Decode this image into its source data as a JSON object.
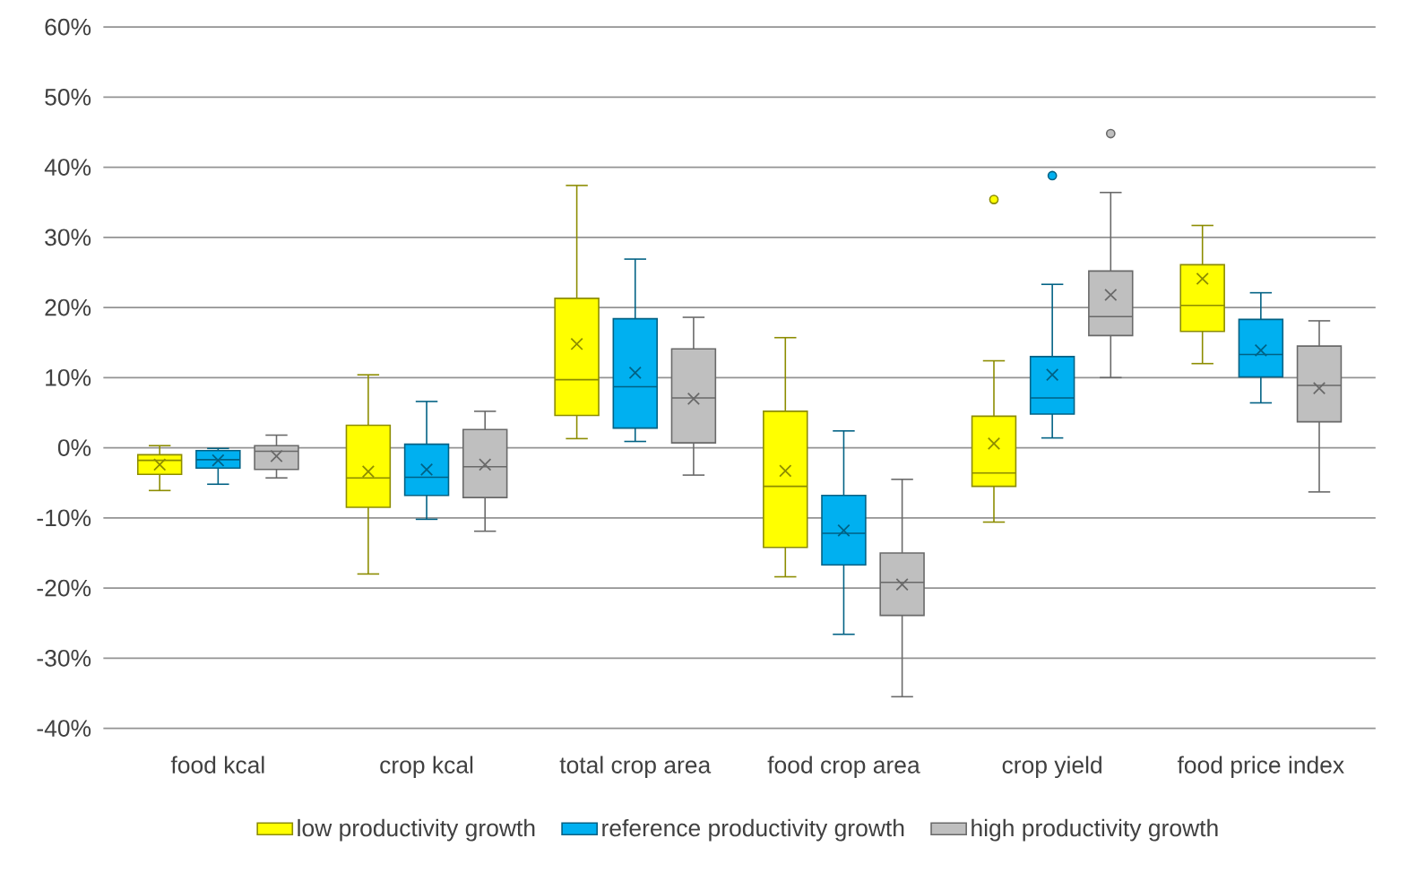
{
  "chart_data": {
    "type": "box",
    "categories": [
      "food kcal",
      "crop kcal",
      "total crop area",
      "food crop area",
      "crop yield",
      "food price index"
    ],
    "ylim": [
      -40,
      60
    ],
    "yticks": [
      {
        "value": -40,
        "label": "-40%"
      },
      {
        "value": -30,
        "label": "-30%"
      },
      {
        "value": -20,
        "label": "-20%"
      },
      {
        "value": -10,
        "label": "-10%"
      },
      {
        "value": 0,
        "label": "0%"
      },
      {
        "value": 10,
        "label": "10%"
      },
      {
        "value": 20,
        "label": "20%"
      },
      {
        "value": 30,
        "label": "30%"
      },
      {
        "value": 40,
        "label": "40%"
      },
      {
        "value": 50,
        "label": "50%"
      },
      {
        "value": 60,
        "label": "60%"
      }
    ],
    "grid": "y",
    "legend": "bottom",
    "series": [
      {
        "name": "low productivity growth",
        "color": "#ffff00",
        "boxes": [
          {
            "low": -6.1,
            "q1": -3.8,
            "median": -1.8,
            "q3": -1.0,
            "high": 0.3,
            "mean": -2.4
          },
          {
            "low": -18.0,
            "q1": -8.5,
            "median": -4.3,
            "q3": 3.2,
            "high": 10.4,
            "mean": -3.4
          },
          {
            "low": 1.3,
            "q1": 4.6,
            "median": 9.7,
            "q3": 21.3,
            "high": 37.4,
            "mean": 14.8
          },
          {
            "low": -18.4,
            "q1": -14.2,
            "median": -5.5,
            "q3": 5.2,
            "high": 15.7,
            "mean": -3.3
          },
          {
            "low": -10.6,
            "q1": -5.5,
            "median": -3.6,
            "q3": 4.5,
            "high": 12.4,
            "mean": 0.6,
            "outliers": [
              35.4
            ]
          },
          {
            "low": 12.0,
            "q1": 16.6,
            "median": 20.3,
            "q3": 26.1,
            "high": 31.7,
            "mean": 24.1
          }
        ]
      },
      {
        "name": "reference productivity growth",
        "color": "#00b0f0",
        "boxes": [
          {
            "low": -5.2,
            "q1": -2.9,
            "median": -1.7,
            "q3": -0.4,
            "high": -0.1,
            "mean": -1.8
          },
          {
            "low": -10.2,
            "q1": -6.8,
            "median": -4.2,
            "q3": 0.5,
            "high": 6.6,
            "mean": -3.1
          },
          {
            "low": 0.9,
            "q1": 2.8,
            "median": 8.7,
            "q3": 18.4,
            "high": 26.9,
            "mean": 10.7
          },
          {
            "low": -26.6,
            "q1": -16.7,
            "median": -12.2,
            "q3": -6.8,
            "high": 2.4,
            "mean": -11.8
          },
          {
            "low": 1.4,
            "q1": 4.8,
            "median": 7.1,
            "q3": 13.0,
            "high": 23.3,
            "mean": 10.4,
            "outliers": [
              38.8
            ]
          },
          {
            "low": 6.4,
            "q1": 10.1,
            "median": 13.3,
            "q3": 18.3,
            "high": 22.1,
            "mean": 13.9
          }
        ]
      },
      {
        "name": "high productivity growth",
        "color": "#bfbfbf",
        "boxes": [
          {
            "low": -4.3,
            "q1": -3.1,
            "median": -0.5,
            "q3": 0.3,
            "high": 1.8,
            "mean": -1.2
          },
          {
            "low": -11.9,
            "q1": -7.1,
            "median": -2.7,
            "q3": 2.6,
            "high": 5.2,
            "mean": -2.4
          },
          {
            "low": -3.9,
            "q1": 0.7,
            "median": 7.1,
            "q3": 14.1,
            "high": 18.6,
            "mean": 7.0
          },
          {
            "low": -35.5,
            "q1": -23.9,
            "median": -19.2,
            "q3": -15.0,
            "high": -4.5,
            "mean": -19.5
          },
          {
            "low": 10.0,
            "q1": 16.0,
            "median": 18.7,
            "q3": 25.2,
            "high": 36.4,
            "mean": 21.8,
            "outliers": [
              44.8
            ]
          },
          {
            "low": -6.3,
            "q1": 3.7,
            "median": 8.9,
            "q3": 14.5,
            "high": 18.1,
            "mean": 8.5
          }
        ]
      }
    ]
  }
}
